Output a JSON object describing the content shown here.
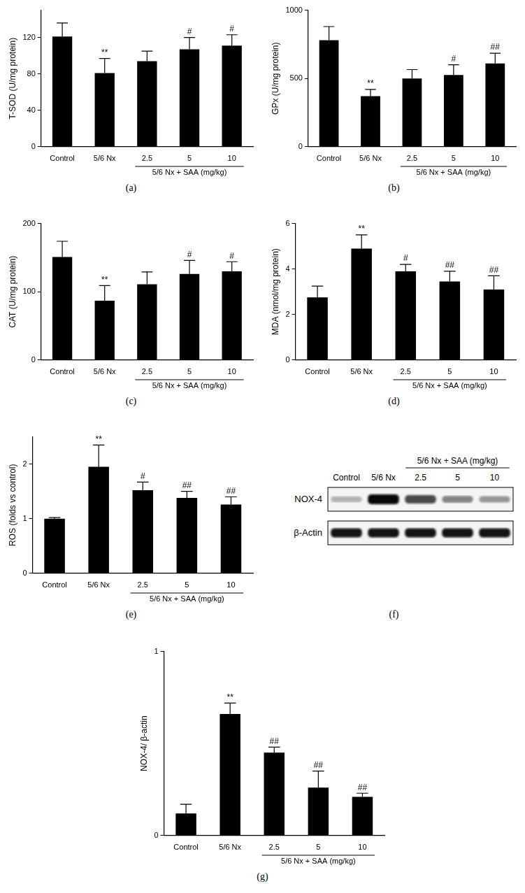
{
  "chart_data": [
    {
      "type": "bar",
      "panel": "(a)",
      "y_label": "T-SOD (U/mg protein)",
      "categories": [
        "Control",
        "5/6 Nx",
        "2.5",
        "5",
        "10"
      ],
      "values": [
        121,
        81,
        94,
        107,
        111
      ],
      "errors": [
        15,
        16,
        11,
        13,
        12
      ],
      "annotations": [
        null,
        "**",
        null,
        "#",
        "#"
      ],
      "group_label": "5/6 Nx + SAA (mg/kg)",
      "group_categories": [
        "2.5",
        "5",
        "10"
      ],
      "color": "#000000",
      "ylim": [
        0,
        150
      ],
      "yticks": [
        0,
        40,
        80,
        120
      ],
      "grid": false
    },
    {
      "type": "bar",
      "panel": "(b)",
      "y_label": "GPx (U/mg protein)",
      "categories": [
        "Control",
        "5/6 Nx",
        "2.5",
        "5",
        "10"
      ],
      "values": [
        780,
        370,
        500,
        525,
        610
      ],
      "errors": [
        100,
        50,
        65,
        75,
        75
      ],
      "annotations": [
        null,
        "**",
        null,
        "#",
        "##"
      ],
      "group_label": "5/6 Nx + SAA (mg/kg)",
      "group_categories": [
        "2.5",
        "5",
        "10"
      ],
      "color": "#000000",
      "ylim": [
        0,
        1000
      ],
      "yticks": [
        0,
        500,
        1000
      ],
      "grid": false
    },
    {
      "type": "bar",
      "panel": "(c)",
      "y_label": "CAT (U/mg protein)",
      "categories": [
        "Control",
        "5/6 Nx",
        "2.5",
        "5",
        "10"
      ],
      "values": [
        151,
        87,
        111,
        126,
        130
      ],
      "errors": [
        23,
        22,
        18,
        20,
        14
      ],
      "annotations": [
        null,
        "**",
        null,
        "#",
        "#"
      ],
      "group_label": "5/6 Nx + SAA (mg/kg)",
      "group_categories": [
        "2.5",
        "5",
        "10"
      ],
      "color": "#000000",
      "ylim": [
        0,
        200
      ],
      "yticks": [
        0,
        100,
        200
      ],
      "grid": false
    },
    {
      "type": "bar",
      "panel": "(d)",
      "y_label": "MDA (nmol/mg protein)",
      "categories": [
        "Control",
        "5/6 Nx",
        "2.5",
        "5",
        "10"
      ],
      "values": [
        2.75,
        4.9,
        3.9,
        3.45,
        3.1
      ],
      "errors": [
        0.5,
        0.6,
        0.3,
        0.45,
        0.6
      ],
      "annotations": [
        null,
        "**",
        "#",
        "##",
        "##"
      ],
      "group_label": "5/6 Nx + SAA (mg/kg)",
      "group_categories": [
        "2.5",
        "5",
        "10"
      ],
      "color": "#000000",
      "ylim": [
        0,
        6
      ],
      "yticks": [
        0,
        2,
        4,
        6
      ],
      "grid": false
    },
    {
      "type": "bar",
      "panel": "(e)",
      "y_label": "ROS (folds vs control)",
      "categories": [
        "Control",
        "5/6 Nx",
        "2.5",
        "5",
        "10"
      ],
      "values": [
        1.0,
        1.95,
        1.52,
        1.38,
        1.26
      ],
      "errors": [
        0.02,
        0.4,
        0.15,
        0.12,
        0.14
      ],
      "annotations": [
        null,
        "**",
        "#",
        "##",
        "##"
      ],
      "group_label": "5/6 Nx + SAA (mg/kg)",
      "group_categories": [
        "2.5",
        "5",
        "10"
      ],
      "color": "#000000",
      "ylim": [
        0,
        2.5
      ],
      "yticks": [
        0,
        1,
        2
      ],
      "grid": false
    },
    {
      "type": "bar",
      "panel": "(g)",
      "y_label": "NOX-4/ β-actin",
      "categories": [
        "Control",
        "5/6 Nx",
        "2.5",
        "5",
        "10"
      ],
      "values": [
        0.12,
        0.66,
        0.45,
        0.26,
        0.21
      ],
      "errors": [
        0.05,
        0.06,
        0.03,
        0.09,
        0.02
      ],
      "annotations": [
        null,
        "**",
        "##",
        "##",
        "##"
      ],
      "group_label": "5/6 Nx + SAA (mg/kg)",
      "group_categories": [
        "2.5",
        "5",
        "10"
      ],
      "color": "#000000",
      "ylim": [
        0,
        1
      ],
      "yticks": [
        0,
        1
      ],
      "grid": false
    }
  ],
  "blot": {
    "panel": "(f)",
    "lanes": [
      "Control",
      "5/6 Nx",
      "2.5",
      "5",
      "10"
    ],
    "group_label": "5/6 Nx + SAA (mg/kg)",
    "group_lanes": [
      "2.5",
      "5",
      "10"
    ],
    "rows": [
      "NOX-4",
      "β-Actin"
    ]
  }
}
